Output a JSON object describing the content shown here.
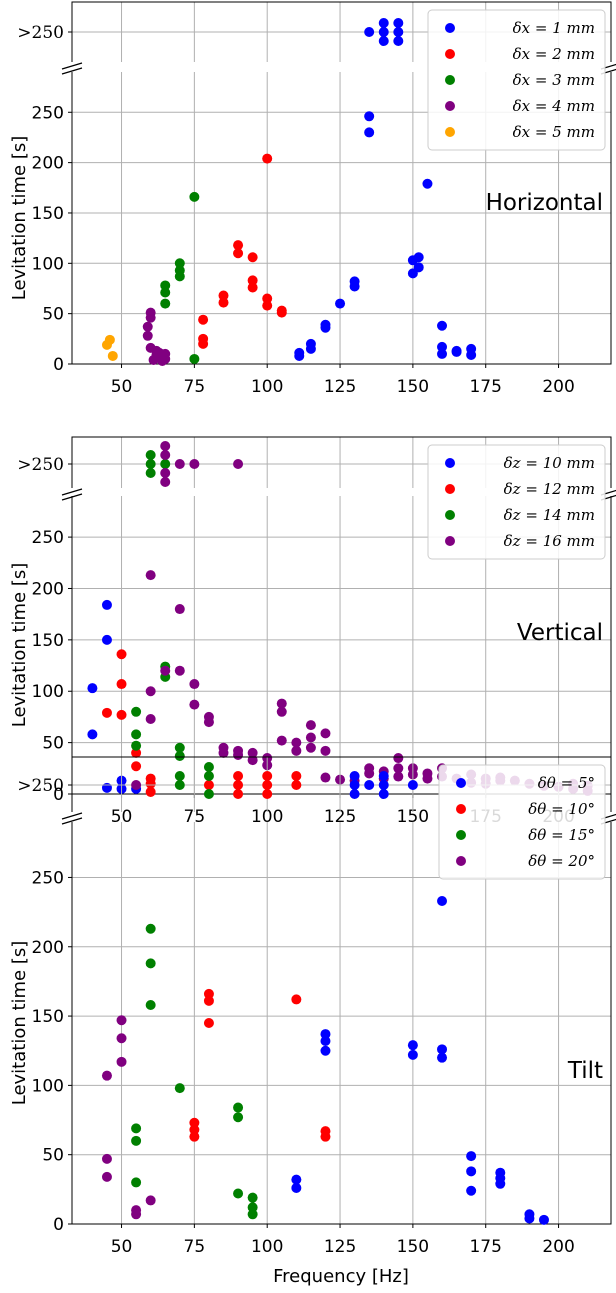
{
  "chart_data": [
    {
      "type": "scatter",
      "panel_label": "Horizontal",
      "ylabel": "Levitation time [s]",
      "xlabel": "",
      "top_band_label": ">250",
      "xlim": [
        33,
        218
      ],
      "ylim": [
        0,
        290
      ],
      "xticks": [
        50,
        75,
        100,
        125,
        150,
        175,
        200
      ],
      "yticks": [
        0,
        50,
        100,
        150,
        200,
        250
      ],
      "grid": true,
      "legend_position": "top-right",
      "series": [
        {
          "name": "δx = 1 mm",
          "color": "#0000ff",
          "points": [
            [
              111,
              8
            ],
            [
              111,
              11
            ],
            [
              115,
              15
            ],
            [
              115,
              20
            ],
            [
              120,
              36
            ],
            [
              120,
              39
            ],
            [
              125,
              60
            ],
            [
              130,
              77
            ],
            [
              130,
              82
            ],
            [
              135,
              230
            ],
            [
              135,
              246
            ],
            [
              150,
              90
            ],
            [
              150,
              103
            ],
            [
              152,
              96
            ],
            [
              152,
              106
            ],
            [
              155,
              179
            ],
            [
              160,
              10
            ],
            [
              160,
              17
            ],
            [
              160,
              38
            ],
            [
              165,
              12
            ],
            [
              165,
              13
            ],
            [
              170,
              9
            ],
            [
              170,
              15
            ],
            [
              135,
              ">250"
            ],
            [
              140,
              ">250"
            ],
            [
              140,
              ">250"
            ],
            [
              140,
              ">250"
            ],
            [
              145,
              ">250"
            ],
            [
              145,
              ">250"
            ],
            [
              145,
              ">250"
            ]
          ]
        },
        {
          "name": "δx = 2 mm",
          "color": "#ff0000",
          "points": [
            [
              78,
              20
            ],
            [
              78,
              25
            ],
            [
              78,
              44
            ],
            [
              85,
              61
            ],
            [
              85,
              68
            ],
            [
              90,
              110
            ],
            [
              90,
              118
            ],
            [
              95,
              76
            ],
            [
              95,
              83
            ],
            [
              95,
              106
            ],
            [
              100,
              58
            ],
            [
              100,
              65
            ],
            [
              100,
              204
            ],
            [
              105,
              51
            ],
            [
              105,
              53
            ]
          ]
        },
        {
          "name": "δx = 3 mm",
          "color": "#008000",
          "points": [
            [
              65,
              60
            ],
            [
              65,
              71
            ],
            [
              65,
              78
            ],
            [
              70,
              87
            ],
            [
              70,
              93
            ],
            [
              70,
              100
            ],
            [
              75,
              5
            ],
            [
              75,
              166
            ]
          ]
        },
        {
          "name": "δx = 4 mm",
          "color": "#800080",
          "points": [
            [
              59,
              28
            ],
            [
              59,
              37
            ],
            [
              60,
              16
            ],
            [
              60,
              46
            ],
            [
              60,
              51
            ],
            [
              61,
              4
            ],
            [
              62,
              9
            ],
            [
              62,
              13
            ],
            [
              63,
              11
            ],
            [
              64,
              3
            ],
            [
              64,
              7
            ],
            [
              65,
              5
            ],
            [
              65,
              10
            ]
          ]
        },
        {
          "name": "δx = 5 mm",
          "color": "#ffa500",
          "points": [
            [
              45,
              19
            ],
            [
              46,
              24
            ],
            [
              47,
              8
            ]
          ]
        }
      ]
    },
    {
      "type": "scatter",
      "panel_label": "Vertical",
      "ylabel": "Levitation time [s]",
      "xlabel": "",
      "top_band_label": ">250",
      "xlim": [
        33,
        218
      ],
      "ylim": [
        0,
        290
      ],
      "xticks": [
        50,
        75,
        100,
        125,
        150,
        175,
        200
      ],
      "yticks": [
        0,
        50,
        100,
        150,
        200,
        250
      ],
      "grid": true,
      "legend_position": "top-right",
      "series": [
        {
          "name": "δz = 10 mm",
          "color": "#0000ff",
          "points": [
            [
              40,
              58
            ],
            [
              40,
              103
            ],
            [
              45,
              6
            ],
            [
              45,
              150
            ],
            [
              45,
              184
            ],
            [
              50,
              5
            ],
            [
              50,
              13
            ],
            [
              55,
              5
            ]
          ]
        },
        {
          "name": "δz = 12 mm",
          "color": "#ff0000",
          "points": [
            [
              45,
              79
            ],
            [
              50,
              77
            ],
            [
              50,
              107
            ],
            [
              50,
              136
            ],
            [
              55,
              27
            ],
            [
              55,
              40
            ],
            [
              60,
              2
            ],
            [
              60,
              10
            ],
            [
              60,
              15
            ]
          ]
        },
        {
          "name": "δz = 14 mm",
          "color": "#008000",
          "points": [
            [
              55,
              47
            ],
            [
              55,
              58
            ],
            [
              55,
              80
            ],
            [
              65,
              114
            ],
            [
              65,
              124
            ],
            [
              70,
              37
            ],
            [
              70,
              45
            ],
            [
              60,
              ">250"
            ],
            [
              60,
              ">250"
            ],
            [
              60,
              ">250"
            ],
            [
              65,
              ">250"
            ]
          ]
        },
        {
          "name": "δz = 16 mm",
          "color": "#800080",
          "points": [
            [
              60,
              73
            ],
            [
              60,
              100
            ],
            [
              60,
              213
            ],
            [
              65,
              120
            ],
            [
              70,
              120
            ],
            [
              70,
              180
            ],
            [
              75,
              87
            ],
            [
              75,
              107
            ],
            [
              80,
              70
            ],
            [
              80,
              75
            ],
            [
              85,
              40
            ],
            [
              85,
              45
            ],
            [
              90,
              38
            ],
            [
              90,
              42
            ],
            [
              95,
              33
            ],
            [
              95,
              40
            ],
            [
              100,
              28
            ],
            [
              100,
              35
            ],
            [
              105,
              52
            ],
            [
              105,
              80
            ],
            [
              105,
              88
            ],
            [
              110,
              42
            ],
            [
              110,
              50
            ],
            [
              115,
              45
            ],
            [
              115,
              55
            ],
            [
              115,
              67
            ],
            [
              120,
              42
            ],
            [
              120,
              59
            ],
            [
              120,
              16
            ],
            [
              125,
              14
            ],
            [
              130,
              13
            ],
            [
              135,
              20
            ],
            [
              135,
              25
            ],
            [
              140,
              15
            ],
            [
              140,
              22
            ],
            [
              145,
              17
            ],
            [
              145,
              25
            ],
            [
              145,
              35
            ],
            [
              150,
              19
            ],
            [
              150,
              25
            ],
            [
              155,
              15
            ],
            [
              155,
              20
            ],
            [
              160,
              17
            ],
            [
              160,
              25
            ],
            [
              165,
              15
            ],
            [
              170,
              11
            ],
            [
              170,
              19
            ],
            [
              175,
              10
            ],
            [
              175,
              15
            ],
            [
              180,
              13
            ],
            [
              180,
              16
            ],
            [
              185,
              13
            ],
            [
              190,
              10
            ],
            [
              195,
              8
            ],
            [
              200,
              7
            ],
            [
              205,
              5
            ],
            [
              205,
              10
            ],
            [
              210,
              3
            ],
            [
              210,
              8
            ],
            [
              65,
              ">250"
            ],
            [
              65,
              ">250"
            ],
            [
              65,
              ">250"
            ],
            [
              65,
              ">250"
            ],
            [
              70,
              ">250"
            ],
            [
              75,
              ">250"
            ],
            [
              90,
              ">250"
            ]
          ]
        }
      ]
    },
    {
      "type": "scatter",
      "panel_label": "Tilt",
      "ylabel": "Levitation time [s]",
      "xlabel": "Frequency [Hz]",
      "top_band_label": ">250",
      "xlim": [
        33,
        218
      ],
      "ylim": [
        0,
        290
      ],
      "xticks": [
        50,
        75,
        100,
        125,
        150,
        175,
        200
      ],
      "yticks": [
        0,
        50,
        100,
        150,
        200,
        250
      ],
      "grid": true,
      "legend_position": "top-right",
      "series": [
        {
          "name": "δθ = 5°",
          "color": "#0000ff",
          "points": [
            [
              110,
              26
            ],
            [
              110,
              32
            ],
            [
              120,
              125
            ],
            [
              120,
              132
            ],
            [
              120,
              137
            ],
            [
              150,
              122
            ],
            [
              150,
              129
            ],
            [
              160,
              120
            ],
            [
              160,
              126
            ],
            [
              160,
              233
            ],
            [
              170,
              24
            ],
            [
              170,
              38
            ],
            [
              170,
              49
            ],
            [
              180,
              29
            ],
            [
              180,
              33
            ],
            [
              180,
              37
            ],
            [
              190,
              4
            ],
            [
              190,
              7
            ],
            [
              195,
              3
            ],
            [
              130,
              ">250"
            ],
            [
              130,
              ">250"
            ],
            [
              130,
              ">250"
            ],
            [
              135,
              ">250"
            ],
            [
              140,
              ">250"
            ],
            [
              140,
              ">250"
            ],
            [
              140,
              ">250"
            ],
            [
              150,
              ">250"
            ]
          ]
        },
        {
          "name": "δθ = 10°",
          "color": "#ff0000",
          "points": [
            [
              75,
              63
            ],
            [
              75,
              68
            ],
            [
              75,
              73
            ],
            [
              80,
              145
            ],
            [
              80,
              161
            ],
            [
              80,
              166
            ],
            [
              110,
              162
            ],
            [
              120,
              63
            ],
            [
              120,
              67
            ],
            [
              80,
              ">250"
            ],
            [
              90,
              ">250"
            ],
            [
              90,
              ">250"
            ],
            [
              90,
              ">250"
            ],
            [
              100,
              ">250"
            ],
            [
              100,
              ">250"
            ],
            [
              100,
              ">250"
            ],
            [
              110,
              ">250"
            ],
            [
              110,
              ">250"
            ]
          ]
        },
        {
          "name": "δθ = 15°",
          "color": "#008000",
          "points": [
            [
              55,
              30
            ],
            [
              55,
              60
            ],
            [
              55,
              69
            ],
            [
              60,
              158
            ],
            [
              60,
              188
            ],
            [
              60,
              213
            ],
            [
              70,
              98
            ],
            [
              90,
              22
            ],
            [
              90,
              77
            ],
            [
              90,
              84
            ],
            [
              95,
              7
            ],
            [
              95,
              12
            ],
            [
              95,
              19
            ],
            [
              70,
              ">250"
            ],
            [
              70,
              ">250"
            ],
            [
              80,
              ">250"
            ],
            [
              80,
              ">250"
            ],
            [
              80,
              ">250"
            ]
          ]
        },
        {
          "name": "δθ = 20°",
          "color": "#800080",
          "points": [
            [
              45,
              34
            ],
            [
              45,
              47
            ],
            [
              45,
              107
            ],
            [
              50,
              117
            ],
            [
              50,
              134
            ],
            [
              50,
              147
            ],
            [
              55,
              7
            ],
            [
              55,
              10
            ],
            [
              60,
              17
            ],
            [
              55,
              ">250"
            ]
          ]
        }
      ]
    }
  ]
}
